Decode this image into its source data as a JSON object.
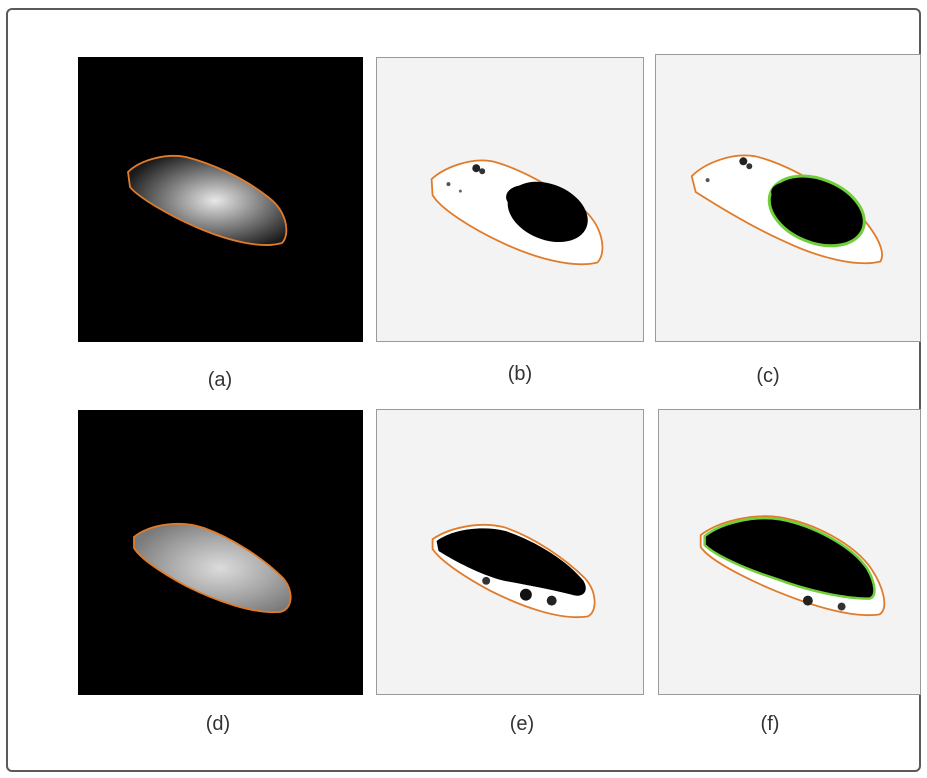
{
  "figure": {
    "panels": [
      {
        "id": "a",
        "label": "(a)",
        "kind": "original-image",
        "contour_color": "#e07b2a"
      },
      {
        "id": "b",
        "label": "(b)",
        "kind": "binary-mask",
        "contour_color": "#e07b2a"
      },
      {
        "id": "c",
        "label": "(c)",
        "kind": "binary-mask-overlay",
        "contour_color": "#e07b2a",
        "overlay_color": "#6fcf3a"
      },
      {
        "id": "d",
        "label": "(d)",
        "kind": "original-image",
        "contour_color": "#e07b2a"
      },
      {
        "id": "e",
        "label": "(e)",
        "kind": "binary-mask",
        "contour_color": "#e07b2a"
      },
      {
        "id": "f",
        "label": "(f)",
        "kind": "binary-mask-overlay",
        "contour_color": "#e07b2a",
        "overlay_color": "#6fcf3a"
      }
    ]
  }
}
